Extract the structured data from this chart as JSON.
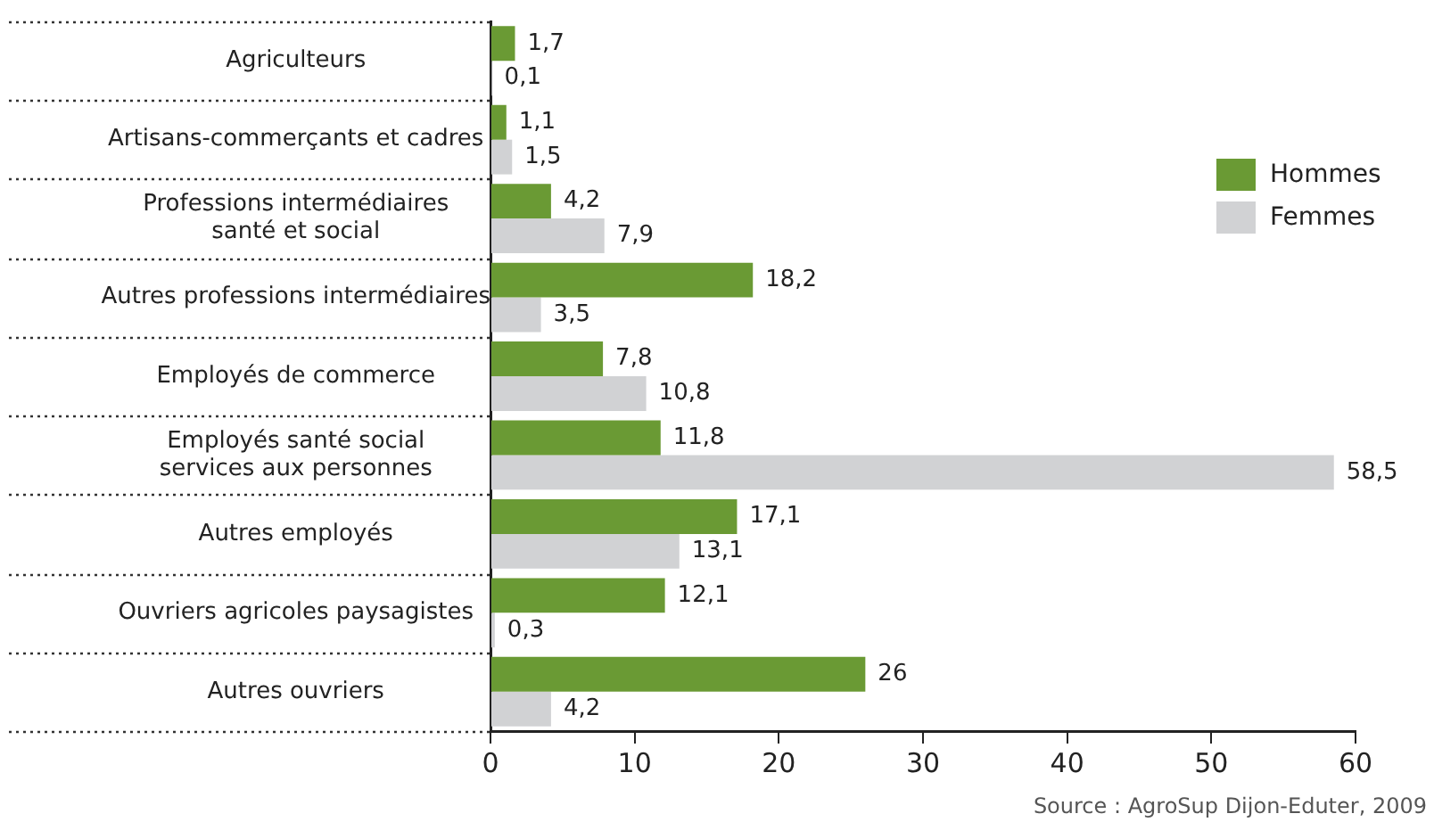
{
  "chart_data": {
    "type": "bar",
    "orientation": "horizontal",
    "categories": [
      "Agriculteurs",
      "Artisans-commerçants et cadres",
      "Professions intermédiaires santé et social",
      "Autres professions intermédiaires",
      "Employés de commerce",
      "Employés santé social services aux personnes",
      "Autres employés",
      "Ouvriers agricoles paysagistes",
      "Autres ouvriers"
    ],
    "series": [
      {
        "name": "Hommes",
        "color": "#6a9a34",
        "values": [
          1.7,
          1.1,
          4.2,
          18.2,
          7.8,
          11.8,
          17.1,
          12.1,
          26
        ],
        "value_labels": [
          "1,7",
          "1,1",
          "4,2",
          "18,2",
          "7,8",
          "11,8",
          "17,1",
          "12,1",
          "26"
        ]
      },
      {
        "name": "Femmes",
        "color": "#d1d2d4",
        "values": [
          0.1,
          1.5,
          7.9,
          3.5,
          10.8,
          58.5,
          13.1,
          0.3,
          4.2
        ],
        "value_labels": [
          "0,1",
          "1,5",
          "7,9",
          "3,5",
          "10,8",
          "58,5",
          "13,1",
          "0,3",
          "4,2"
        ]
      }
    ],
    "xlim": [
      0,
      60
    ],
    "xticks": [
      0,
      10,
      20,
      30,
      40,
      50,
      60
    ],
    "grid": false,
    "legend": "top right",
    "annotations": [
      "Source : AgroSup Dijon-Eduter, 2009"
    ]
  }
}
